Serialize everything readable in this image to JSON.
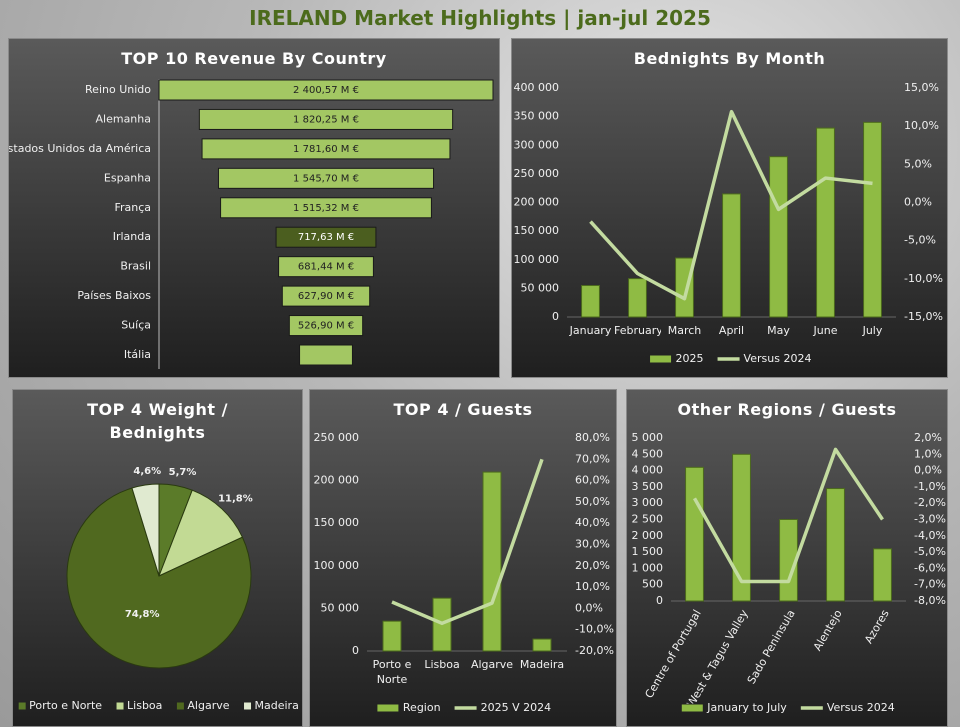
{
  "title": "IRELAND Market Highlights | jan-jul 2025",
  "chart_data": [
    {
      "type": "funnel",
      "title": "TOP 10 Revenue By Country",
      "categories": [
        "Reino Unido",
        "Alemanha",
        "Estados Unidos da América",
        "Espanha",
        "França",
        "Irlanda",
        "Brasil",
        "Países Baixos",
        "Suíça",
        "Itália"
      ],
      "values": [
        2400.57,
        1820.25,
        1781.6,
        1545.7,
        1515.32,
        717.63,
        681.44,
        627.9,
        526.9,
        380
      ],
      "value_labels": [
        "2 400,57 M €",
        "1 820,25 M €",
        "1 781,60 M €",
        "1 545,70 M €",
        "1 515,32 M €",
        "717,63 M €",
        "681,44 M €",
        "627,90 M €",
        "526,90 M €",
        null
      ],
      "colors": [
        "#a3c763",
        "#a3c763",
        "#a3c763",
        "#a3c763",
        "#a3c763",
        "#4b5e1f",
        "#a3c763",
        "#a3c763",
        "#a3c763",
        "#a3c763"
      ]
    },
    {
      "type": "combo",
      "title": "Bednights By Month",
      "categories": [
        "January",
        "February",
        "March",
        "April",
        "May",
        "June",
        "July"
      ],
      "series": [
        {
          "name": "2025",
          "type": "bar",
          "color": "#8fbb44",
          "values": [
            55000,
            67000,
            103000,
            215000,
            280000,
            330000,
            340000
          ]
        },
        {
          "name": "Versus 2024",
          "type": "line",
          "axis": "y2",
          "color": "#c3dba0",
          "values": [
            -2.5,
            -9.3,
            -12.6,
            11.9,
            -0.9,
            3.2,
            2.5
          ]
        }
      ],
      "ylim": [
        0,
        400000
      ],
      "yticks": [
        0,
        {
          "value": 50000,
          "label": "50 000"
        },
        {
          "value": 100000,
          "label": "100 000"
        },
        {
          "value": 150000,
          "label": "150 000"
        },
        {
          "value": 200000,
          "label": "200 000"
        },
        {
          "value": 250000,
          "label": "250 000"
        },
        {
          "value": 300000,
          "label": "300 000"
        },
        {
          "value": 350000,
          "label": "350 000"
        },
        {
          "value": 400000,
          "label": "400 000"
        }
      ],
      "y2lim": [
        -15,
        15
      ],
      "y2ticks": [
        {
          "value": -15,
          "label": "-15,0%"
        },
        {
          "value": -10,
          "label": "-10,0%"
        },
        {
          "value": -5,
          "label": "-5,0%"
        },
        {
          "value": 0,
          "label": "0,0%"
        },
        {
          "value": 5,
          "label": "5,0%"
        },
        {
          "value": 10,
          "label": "10,0%"
        },
        {
          "value": 15,
          "label": "15,0%"
        }
      ]
    },
    {
      "type": "pie",
      "title": "TOP 4 Weight / Bednights",
      "categories": [
        "Porto e Norte",
        "Lisboa",
        "Algarve",
        "Madeira"
      ],
      "values": [
        5.7,
        11.8,
        74.8,
        4.6
      ],
      "value_labels": [
        "5,7%",
        "11,8%",
        "74,8%",
        "4,6%"
      ],
      "colors": [
        "#5b7b29",
        "#c2da94",
        "#50691f",
        "#e0ead0"
      ]
    },
    {
      "type": "combo",
      "title": "TOP 4 / Guests",
      "categories": [
        "Porto e Norte",
        "Lisboa",
        "Algarve",
        "Madeira"
      ],
      "series": [
        {
          "name": "Region",
          "type": "bar",
          "color": "#8fbb44",
          "values": [
            35000,
            62000,
            210000,
            14000
          ]
        },
        {
          "name": "2025 V 2024",
          "type": "line",
          "axis": "y2",
          "color": "#c3dba0",
          "values": [
            3,
            -7,
            2.5,
            70
          ]
        }
      ],
      "ylim": [
        0,
        250000
      ],
      "yticks": [
        0,
        {
          "value": 50000,
          "label": "50 000"
        },
        {
          "value": 100000,
          "label": "100 000"
        },
        {
          "value": 150000,
          "label": "150 000"
        },
        {
          "value": 200000,
          "label": "200 000"
        },
        {
          "value": 250000,
          "label": "250 000"
        }
      ],
      "y2lim": [
        -20,
        80
      ],
      "y2ticks": [
        {
          "value": -20,
          "label": "-20,0%"
        },
        {
          "value": -10,
          "label": "-10,0%"
        },
        {
          "value": 0,
          "label": "0,0%"
        },
        {
          "value": 10,
          "label": "10,0%"
        },
        {
          "value": 20,
          "label": "20,0%"
        },
        {
          "value": 30,
          "label": "30,0%"
        },
        {
          "value": 40,
          "label": "40,0%"
        },
        {
          "value": 50,
          "label": "50,0%"
        },
        {
          "value": 60,
          "label": "60,0%"
        },
        {
          "value": 70,
          "label": "70,0%"
        },
        {
          "value": 80,
          "label": "80,0%"
        }
      ]
    },
    {
      "type": "combo",
      "title": "Other Regions / Guests",
      "categories": [
        "Centre of Portugal",
        "West & Tagus Valley",
        "Sado Peninsula",
        "Alentejo",
        "Azores"
      ],
      "series": [
        {
          "name": "January to July",
          "type": "bar",
          "color": "#8fbb44",
          "values": [
            4100,
            4500,
            2500,
            3450,
            1600
          ]
        },
        {
          "name": "Versus 2024",
          "type": "line",
          "axis": "y2",
          "color": "#c3dba0",
          "values": [
            -1.7,
            -6.8,
            -6.8,
            1.3,
            -3.0
          ]
        }
      ],
      "ylim": [
        0,
        5000
      ],
      "yticks": [
        0,
        500,
        {
          "value": 1000,
          "label": "1 000"
        },
        {
          "value": 1500,
          "label": "1 500"
        },
        {
          "value": 2000,
          "label": "2 000"
        },
        {
          "value": 2500,
          "label": "2 500"
        },
        {
          "value": 3000,
          "label": "3 000"
        },
        {
          "value": 3500,
          "label": "3 500"
        },
        {
          "value": 4000,
          "label": "4 000"
        },
        {
          "value": 4500,
          "label": "4 500"
        },
        {
          "value": 5000,
          "label": "5 000"
        }
      ],
      "y2lim": [
        -8,
        2
      ],
      "y2ticks": [
        {
          "value": -8,
          "label": "-8,0%"
        },
        {
          "value": -7,
          "label": "-7,0%"
        },
        {
          "value": -6,
          "label": "-6,0%"
        },
        {
          "value": -5,
          "label": "-5,0%"
        },
        {
          "value": -4,
          "label": "-4,0%"
        },
        {
          "value": -3,
          "label": "-3,0%"
        },
        {
          "value": -2,
          "label": "-2,0%"
        },
        {
          "value": -1,
          "label": "-1,0%"
        },
        {
          "value": 0,
          "label": "0,0%"
        },
        {
          "value": 1,
          "label": "1,0%"
        },
        {
          "value": 2,
          "label": "2,0%"
        }
      ]
    }
  ]
}
